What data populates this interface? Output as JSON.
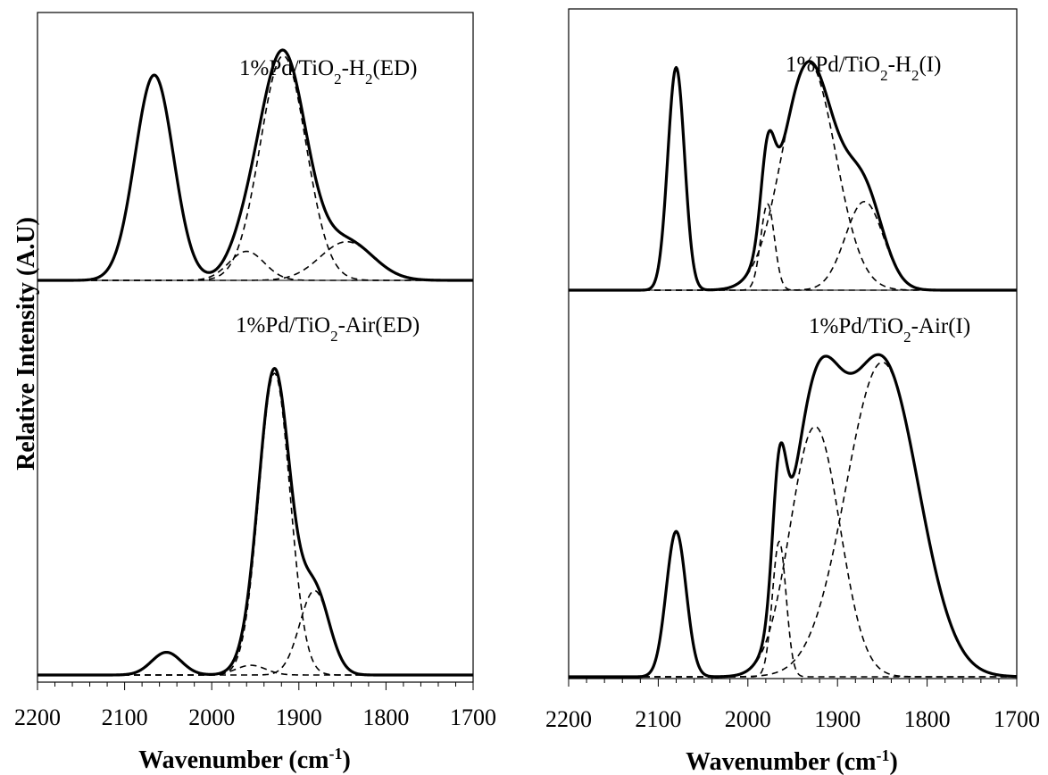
{
  "figure": {
    "ylabel": "Relative Intensity (A.U)"
  },
  "chart_data": [
    {
      "type": "line",
      "panel": "left",
      "xlabel": "Wavenumber (cm-1)",
      "xlabel_main": "Wavenumber (cm",
      "xlabel_sup": "-1",
      "xlabel_close": ")",
      "xlim": [
        2200,
        1700
      ],
      "x_reversed": true,
      "xticks": [
        2200,
        2100,
        2000,
        1900,
        1800,
        1700
      ],
      "ylabel": "Relative Intensity (A.U)",
      "grid": false,
      "spectra": [
        {
          "label": "1%Pd/TiO2-H2(ED)",
          "label_parts": {
            "a": "1%Pd/TiO",
            "b": "2",
            "c": "-H",
            "d": "2",
            "e": "(ED)"
          },
          "ylim": [
            0,
            1.05
          ],
          "fit_peaks": [
            {
              "center": 2066,
              "height": 0.85,
              "fwhm": 52
            },
            {
              "center": 1918,
              "height": 0.93,
              "fwhm": 62
            },
            {
              "center": 1960,
              "height": 0.12,
              "fwhm": 48
            },
            {
              "center": 1845,
              "height": 0.16,
              "fwhm": 72
            }
          ],
          "components": [
            {
              "center": 1918,
              "height": 0.93,
              "fwhm": 62
            },
            {
              "center": 1960,
              "height": 0.12,
              "fwhm": 48
            },
            {
              "center": 1845,
              "height": 0.16,
              "fwhm": 72
            }
          ]
        },
        {
          "label": "1%Pd/TiO2-Air(ED)",
          "label_parts": {
            "a": "1%Pd/TiO",
            "b": "2",
            "c": "-Air(ED)"
          },
          "ylim": [
            0,
            1.2
          ],
          "fit_peaks": [
            {
              "center": 2052,
              "height": 0.07,
              "fwhm": 40
            },
            {
              "center": 1928,
              "height": 0.93,
              "fwhm": 42
            },
            {
              "center": 1955,
              "height": 0.03,
              "fwhm": 40
            },
            {
              "center": 1882,
              "height": 0.26,
              "fwhm": 40
            }
          ],
          "components": [
            {
              "center": 1928,
              "height": 0.93,
              "fwhm": 42
            },
            {
              "center": 1955,
              "height": 0.03,
              "fwhm": 40
            },
            {
              "center": 1882,
              "height": 0.26,
              "fwhm": 40
            }
          ]
        }
      ]
    },
    {
      "type": "line",
      "panel": "right",
      "xlabel": "Wavenumber (cm-1)",
      "xlabel_main": "Wavenumber (cm",
      "xlabel_sup": "-1",
      "xlabel_close": ")",
      "xlim": [
        2200,
        1700
      ],
      "x_reversed": true,
      "xticks": [
        2200,
        2100,
        2000,
        1900,
        1800,
        1700
      ],
      "grid": false,
      "spectra": [
        {
          "label": "1%Pd/TiO2-H2(I)",
          "label_parts": {
            "a": "1%Pd/TiO",
            "b": "2",
            "c": "-H",
            "d": "2",
            "e": "(I)"
          },
          "ylim": [
            0,
            1.1
          ],
          "fit_peaks": [
            {
              "center": 2080,
              "height": 0.93,
              "fwhm": 22
            },
            {
              "center": 1978,
              "height": 0.36,
              "fwhm": 18
            },
            {
              "center": 1932,
              "height": 0.95,
              "fwhm": 70
            },
            {
              "center": 1870,
              "height": 0.37,
              "fwhm": 50
            }
          ],
          "components": [
            {
              "center": 1978,
              "height": 0.36,
              "fwhm": 18
            },
            {
              "center": 1932,
              "height": 0.95,
              "fwhm": 70
            },
            {
              "center": 1870,
              "height": 0.37,
              "fwhm": 50
            }
          ]
        },
        {
          "label": "1%Pd/TiO2-Air(I)",
          "label_parts": {
            "a": "1%Pd/TiO",
            "b": "2",
            "c": "-Air(I)"
          },
          "ylim": [
            0,
            1.13
          ],
          "fit_peaks": [
            {
              "center": 2080,
              "height": 0.43,
              "fwhm": 26
            },
            {
              "center": 1965,
              "height": 0.4,
              "fwhm": 18
            },
            {
              "center": 1925,
              "height": 0.74,
              "fwhm": 65
            },
            {
              "center": 1850,
              "height": 0.93,
              "fwhm": 95
            }
          ],
          "components": [
            {
              "center": 1965,
              "height": 0.4,
              "fwhm": 18
            },
            {
              "center": 1925,
              "height": 0.74,
              "fwhm": 65
            },
            {
              "center": 1850,
              "height": 0.93,
              "fwhm": 95
            }
          ]
        }
      ]
    }
  ]
}
